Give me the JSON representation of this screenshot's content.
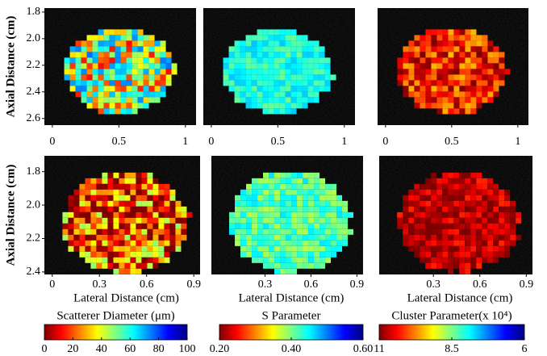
{
  "figure": {
    "rows": [
      {
        "y_label": "Axial Distance (cm)",
        "ylim": [
          1.77,
          2.65
        ],
        "yticks": [
          1.8,
          {
            "value": 2,
            "label": "2.0"
          },
          2.2,
          2.4,
          2.6
        ],
        "panels": [
          {
            "xlim": [
              -0.06,
              1.08
            ],
            "xticks": [
              0,
              0.5,
              1
            ]
          },
          {
            "xlim": [
              -0.06,
              1.08
            ],
            "xticks": [
              0,
              0.5,
              1
            ]
          },
          {
            "xlim": [
              -0.06,
              1.08
            ],
            "xticks": [
              0,
              0.5,
              1
            ]
          }
        ]
      },
      {
        "y_label": "Axial Distance (cm)",
        "ylim": [
          1.705,
          2.415
        ],
        "yticks": [
          1.8,
          {
            "value": 2,
            "label": "2.0"
          },
          2.2,
          2.4
        ],
        "panels": [
          {
            "xlim": [
              -0.05,
              0.94
            ],
            "xticks": [
              0,
              0.3,
              0.6,
              0.9
            ],
            "x_label": "Lateral Distance (cm)"
          },
          {
            "xlim": [
              -0.05,
              0.94
            ],
            "xticks": [
              0.3,
              0.6,
              0.9
            ],
            "x_label": "Lateral Distance (cm)"
          },
          {
            "xlim": [
              -0.05,
              0.94
            ],
            "xticks": [
              0.3,
              0.6,
              0.9
            ],
            "x_label": "Lateral Distance (cm)"
          }
        ]
      }
    ],
    "colorbars": [
      {
        "title": "Scatterer Diameter (μm)",
        "lim": [
          0,
          100
        ],
        "ticks": [
          0,
          20,
          40,
          60,
          80,
          100
        ]
      },
      {
        "title": "S Parameter",
        "lim": [
          0.2,
          0.6
        ],
        "ticks": [
          {
            "value": 0.2,
            "label": "0.20"
          },
          {
            "value": 0.4,
            "label": "0.40"
          },
          {
            "value": 0.6,
            "label": "0.60"
          }
        ]
      },
      {
        "title": "Cluster Parameter(x 10⁴)",
        "lim": [
          11,
          6
        ],
        "ticks": [
          11,
          8.5,
          6
        ]
      }
    ]
  }
}
